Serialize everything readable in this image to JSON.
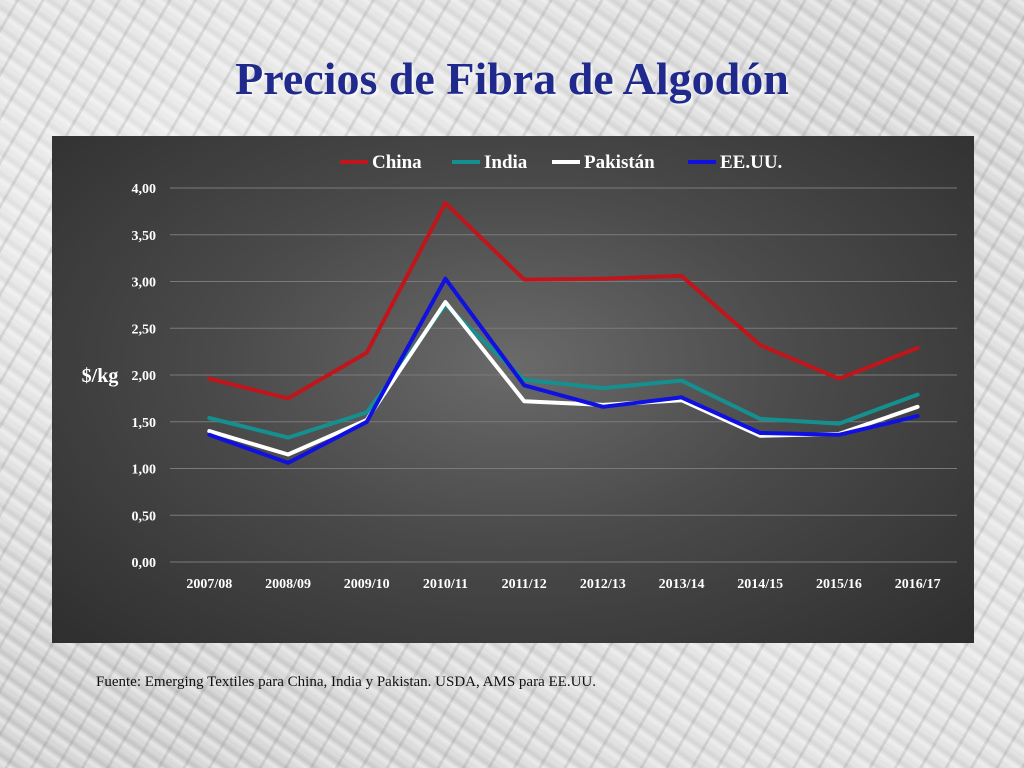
{
  "page": {
    "title": "Precios de Fibra de Algodón",
    "source_note": "Fuente: Emerging Textiles para China, India y Pakistan.  USDA, AMS para EE.UU."
  },
  "chart_data": {
    "type": "line",
    "title": "",
    "xlabel": "",
    "ylabel": "$/kg",
    "ylim": [
      0,
      4
    ],
    "yticks": [
      "0,00",
      "0,50",
      "1,00",
      "1,50",
      "2,00",
      "2,50",
      "3,00",
      "3,50",
      "4,00"
    ],
    "grid": true,
    "legend_position": "top",
    "categories": [
      "2007/08",
      "2008/09",
      "2009/10",
      "2010/11",
      "2011/12",
      "2012/13",
      "2013/14",
      "2014/15",
      "2015/16",
      "2016/17"
    ],
    "series": [
      {
        "name": "China",
        "color": "#c0151b",
        "values": [
          1.96,
          1.75,
          2.24,
          3.84,
          3.02,
          3.03,
          3.06,
          2.32,
          1.96,
          2.29
        ]
      },
      {
        "name": "India",
        "color": "#159090",
        "values": [
          1.54,
          1.33,
          1.6,
          2.75,
          1.95,
          1.86,
          1.94,
          1.53,
          1.48,
          1.79
        ]
      },
      {
        "name": "Pakistán",
        "color": "#ffffff",
        "values": [
          1.4,
          1.15,
          1.52,
          2.78,
          1.72,
          1.68,
          1.73,
          1.35,
          1.37,
          1.66
        ]
      },
      {
        "name": "EE.UU.",
        "color": "#1010e0",
        "values": [
          1.36,
          1.06,
          1.5,
          3.03,
          1.89,
          1.66,
          1.76,
          1.38,
          1.36,
          1.56
        ]
      }
    ]
  }
}
